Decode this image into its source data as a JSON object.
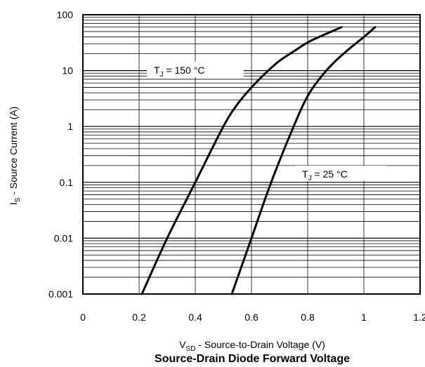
{
  "chart_data": {
    "type": "line",
    "title": "Source-Drain Diode Forward Voltage",
    "xlabel": {
      "main": "V",
      "sub": "SD",
      "rest": " - Source-to-Drain Voltage (V)"
    },
    "ylabel": {
      "main": "I",
      "sub": "S",
      "rest": " - Source Current (A)"
    },
    "xlim": [
      0,
      1.2
    ],
    "ylim": [
      0.001,
      100
    ],
    "yscale": "log",
    "grid": true,
    "x_ticks": [
      "0",
      "0.2",
      "0.4",
      "0.6",
      "0.8",
      "1",
      "1.2"
    ],
    "y_ticks": [
      "0.001",
      "0.01",
      "0.1",
      "1",
      "10",
      "100"
    ],
    "series": [
      {
        "name": {
          "main": "T",
          "sub": "J",
          "rest": " = 150 °C"
        },
        "x": [
          0.21,
          0.3,
          0.4,
          0.5,
          0.55,
          0.6,
          0.65,
          0.7,
          0.75,
          0.8,
          0.85,
          0.92
        ],
        "y": [
          0.001,
          0.01,
          0.1,
          1,
          2.5,
          5,
          9,
          15,
          22,
          32,
          42,
          60
        ]
      },
      {
        "name": {
          "main": "T",
          "sub": "J",
          "rest": " = 25 °C"
        },
        "x": [
          0.53,
          0.6,
          0.67,
          0.75,
          0.8,
          0.85,
          0.9,
          0.95,
          1.0,
          1.04
        ],
        "y": [
          0.001,
          0.01,
          0.1,
          1,
          3.5,
          8,
          15,
          25,
          40,
          60
        ]
      }
    ],
    "annotations": [
      {
        "main": "T",
        "sub": "J",
        "rest": " = 150 °C"
      },
      {
        "main": "T",
        "sub": "J",
        "rest": " = 25 °C"
      }
    ]
  }
}
